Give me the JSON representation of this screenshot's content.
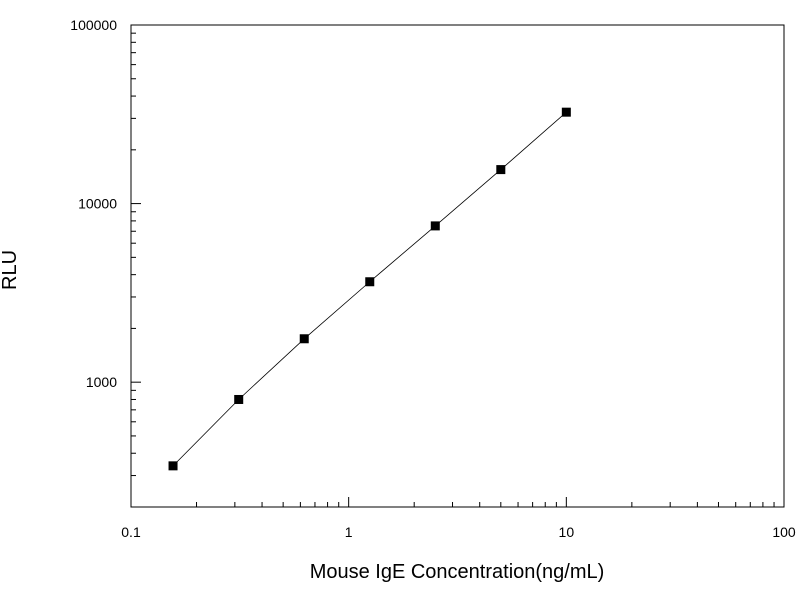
{
  "chart_data": {
    "type": "scatter",
    "xlabel": "Mouse IgE Concentration(ng/mL)",
    "ylabel": "RLU",
    "x_scale": "log",
    "y_scale": "log",
    "xlim": [
      0.1,
      100
    ],
    "ylim": [
      200,
      100000
    ],
    "x_ticks": [
      {
        "value": 0.1,
        "label": "0.1"
      },
      {
        "value": 1,
        "label": "1"
      },
      {
        "value": 10,
        "label": "10"
      },
      {
        "value": 100,
        "label": "100"
      }
    ],
    "y_ticks": [
      {
        "value": 1000,
        "label": "1000"
      },
      {
        "value": 10000,
        "label": "10000"
      },
      {
        "value": 100000,
        "label": "100000"
      }
    ],
    "grid": false,
    "legend": "none",
    "marker_color": "#000000",
    "line_color": "#000000",
    "series": [
      {
        "x": [
          0.156,
          0.3125,
          0.625,
          1.25,
          2.5,
          5,
          10
        ],
        "y": [
          340,
          800,
          1750,
          3650,
          7500,
          15500,
          32500
        ],
        "marker": "square",
        "fit_line": true
      }
    ]
  }
}
